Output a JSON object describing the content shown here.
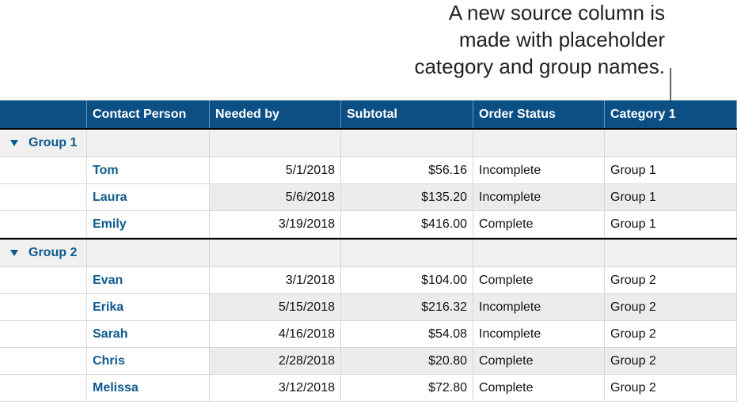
{
  "callout": [
    "A new source column is",
    "made with placeholder",
    "category and group names."
  ],
  "table": {
    "header": [
      "Contact Person",
      "Needed by",
      "Subtotal",
      "Order Status",
      "Category 1"
    ],
    "groups": [
      {
        "label": "Group 1",
        "rows": [
          [
            "Tom",
            "5/1/2018",
            "$56.16",
            "Incomplete",
            "Group 1"
          ],
          [
            "Laura",
            "5/6/2018",
            "$135.20",
            "Incomplete",
            "Group 1"
          ],
          [
            "Emily",
            "3/19/2018",
            "$416.00",
            "Complete",
            "Group 1"
          ]
        ]
      },
      {
        "label": "Group 2",
        "rows": [
          [
            "Evan",
            "3/1/2018",
            "$104.00",
            "Complete",
            "Group 2"
          ],
          [
            "Erika",
            "5/15/2018",
            "$216.32",
            "Incomplete",
            "Group 2"
          ],
          [
            "Sarah",
            "4/16/2018",
            "$54.08",
            "Incomplete",
            "Group 2"
          ],
          [
            "Chris",
            "2/28/2018",
            "$20.80",
            "Complete",
            "Group 2"
          ],
          [
            "Melissa",
            "3/12/2018",
            "$72.80",
            "Complete",
            "Group 2"
          ]
        ]
      }
    ]
  }
}
